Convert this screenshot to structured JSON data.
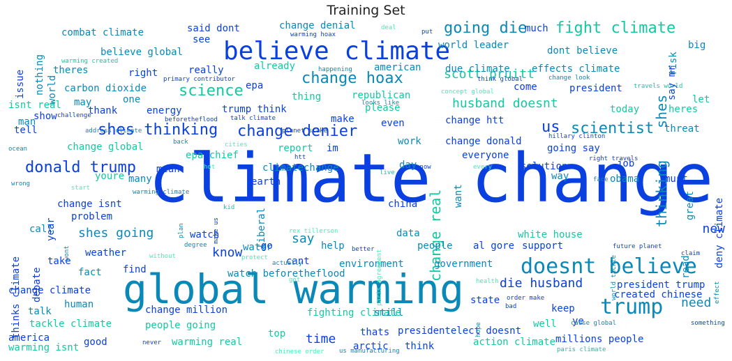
{
  "title": "Training Set",
  "palette": {
    "blue": "#0a3fe0",
    "teal": "#0a88b8",
    "green": "#12c9a0",
    "mint": "#3ef0b8"
  },
  "words": [
    {
      "t": "climate change",
      "s": "xl",
      "c": "blue"
    },
    {
      "t": "global warming",
      "s": "xl2",
      "c": "teal"
    },
    {
      "t": "believe climate",
      "s": "l",
      "c": "blue"
    },
    {
      "t": "doesnt believe",
      "s": "l2",
      "c": "teal"
    },
    {
      "t": "trump",
      "s": "l2",
      "c": "teal"
    },
    {
      "t": "fight climate",
      "s": "m",
      "c": "green"
    },
    {
      "t": "going die",
      "s": "m",
      "c": "teal"
    },
    {
      "t": "us",
      "s": "m",
      "c": "blue"
    },
    {
      "t": "scientist",
      "s": "m",
      "c": "teal"
    },
    {
      "t": "shes thinking",
      "s": "m",
      "c": "blue"
    },
    {
      "t": "change denier",
      "s": "m",
      "c": "blue"
    },
    {
      "t": "donald trump",
      "s": "m",
      "c": "blue"
    },
    {
      "t": "science",
      "s": "m",
      "c": "green"
    },
    {
      "t": "change hoax",
      "s": "m",
      "c": "teal"
    },
    {
      "t": "husband doesnt",
      "s": "ms",
      "c": "green"
    },
    {
      "t": "die husband",
      "s": "ms",
      "c": "blue"
    },
    {
      "t": "shes going",
      "s": "ms",
      "c": "teal"
    },
    {
      "t": "new",
      "s": "ms",
      "c": "blue"
    },
    {
      "t": "know",
      "s": "ms",
      "c": "blue"
    },
    {
      "t": "say",
      "s": "ms",
      "c": "teal"
    },
    {
      "t": "time",
      "s": "ms",
      "c": "blue"
    },
    {
      "t": "need",
      "s": "ms",
      "c": "teal"
    },
    {
      "t": "scott pruitt",
      "s": "ms",
      "c": "green"
    },
    {
      "t": "change real",
      "s": "msv",
      "c": "green"
    },
    {
      "t": "thinking",
      "s": "msv",
      "c": "teal"
    },
    {
      "t": "shes",
      "s": "msv",
      "c": "teal"
    },
    {
      "t": "change denial",
      "s": "s",
      "c": "teal"
    },
    {
      "t": "combat climate",
      "s": "s",
      "c": "teal"
    },
    {
      "t": "said dont",
      "s": "s",
      "c": "blue"
    },
    {
      "t": "much",
      "s": "s",
      "c": "blue"
    },
    {
      "t": "see",
      "s": "s",
      "c": "blue"
    },
    {
      "t": "world leader",
      "s": "s",
      "c": "teal"
    },
    {
      "t": "dont believe",
      "s": "s",
      "c": "teal"
    },
    {
      "t": "big",
      "s": "s",
      "c": "teal"
    },
    {
      "t": "believe global",
      "s": "s",
      "c": "teal"
    },
    {
      "t": "theres",
      "s": "s",
      "c": "teal"
    },
    {
      "t": "right",
      "s": "s",
      "c": "blue"
    },
    {
      "t": "really",
      "s": "s",
      "c": "blue"
    },
    {
      "t": "already",
      "s": "s",
      "c": "green"
    },
    {
      "t": "american",
      "s": "s",
      "c": "teal"
    },
    {
      "t": "due climate",
      "s": "s",
      "c": "teal"
    },
    {
      "t": "effects climate",
      "s": "s",
      "c": "teal"
    },
    {
      "t": "carbon dioxide",
      "s": "s",
      "c": "teal"
    },
    {
      "t": "epa",
      "s": "s",
      "c": "blue"
    },
    {
      "t": "come",
      "s": "s",
      "c": "blue"
    },
    {
      "t": "president",
      "s": "s",
      "c": "blue"
    },
    {
      "t": "one",
      "s": "s",
      "c": "teal"
    },
    {
      "t": "thing",
      "s": "s",
      "c": "green"
    },
    {
      "t": "republican",
      "s": "s",
      "c": "green"
    },
    {
      "t": "isnt real",
      "s": "s",
      "c": "green"
    },
    {
      "t": "thank",
      "s": "s",
      "c": "blue"
    },
    {
      "t": "energy",
      "s": "s",
      "c": "blue"
    },
    {
      "t": "trump think",
      "s": "s",
      "c": "blue"
    },
    {
      "t": "please",
      "s": "s",
      "c": "green"
    },
    {
      "t": "today",
      "s": "s",
      "c": "green"
    },
    {
      "t": "heres",
      "s": "s",
      "c": "green"
    },
    {
      "t": "let",
      "s": "s",
      "c": "green"
    },
    {
      "t": "show",
      "s": "s",
      "c": "blue"
    },
    {
      "t": "make",
      "s": "s",
      "c": "blue"
    },
    {
      "t": "change htt",
      "s": "s",
      "c": "blue"
    },
    {
      "t": "tell",
      "s": "s",
      "c": "blue"
    },
    {
      "t": "even",
      "s": "s",
      "c": "blue"
    },
    {
      "t": "threat",
      "s": "s",
      "c": "teal"
    },
    {
      "t": "change global",
      "s": "s",
      "c": "green"
    },
    {
      "t": "report",
      "s": "s",
      "c": "green"
    },
    {
      "t": "im",
      "s": "s",
      "c": "blue"
    },
    {
      "t": "work",
      "s": "s",
      "c": "teal"
    },
    {
      "t": "change donald",
      "s": "s",
      "c": "blue"
    },
    {
      "t": "epa chief",
      "s": "s",
      "c": "green"
    },
    {
      "t": "everyone",
      "s": "s",
      "c": "blue"
    },
    {
      "t": "going say",
      "s": "s",
      "c": "blue"
    },
    {
      "t": "mean",
      "s": "s",
      "c": "blue"
    },
    {
      "t": "day",
      "s": "s",
      "c": "teal"
    },
    {
      "t": "job",
      "s": "s",
      "c": "blue"
    },
    {
      "t": "climatechange",
      "s": "s",
      "c": "teal"
    },
    {
      "t": "solution",
      "s": "s",
      "c": "blue"
    },
    {
      "t": "youre",
      "s": "s",
      "c": "green"
    },
    {
      "t": "many",
      "s": "s",
      "c": "teal"
    },
    {
      "t": "earth",
      "s": "s",
      "c": "blue"
    },
    {
      "t": "way",
      "s": "s",
      "c": "teal"
    },
    {
      "t": "obama",
      "s": "s",
      "c": "teal"
    },
    {
      "t": "must",
      "s": "s",
      "c": "blue"
    },
    {
      "t": "change isnt",
      "s": "s",
      "c": "blue"
    },
    {
      "t": "china",
      "s": "s",
      "c": "blue"
    },
    {
      "t": "problem",
      "s": "s",
      "c": "blue"
    },
    {
      "t": "call",
      "s": "s",
      "c": "teal"
    },
    {
      "t": "data",
      "s": "s",
      "c": "teal"
    },
    {
      "t": "white house",
      "s": "s",
      "c": "green"
    },
    {
      "t": "watch",
      "s": "s",
      "c": "blue"
    },
    {
      "t": "water",
      "s": "s",
      "c": "teal"
    },
    {
      "t": "help",
      "s": "s",
      "c": "teal"
    },
    {
      "t": "people",
      "s": "s",
      "c": "teal"
    },
    {
      "t": "al gore",
      "s": "s",
      "c": "blue"
    },
    {
      "t": "support",
      "s": "s",
      "c": "blue"
    },
    {
      "t": "weather",
      "s": "s",
      "c": "blue"
    },
    {
      "t": "go",
      "s": "s",
      "c": "blue"
    },
    {
      "t": "take",
      "s": "s",
      "c": "blue"
    },
    {
      "t": "cant",
      "s": "s",
      "c": "blue"
    },
    {
      "t": "environment",
      "s": "s",
      "c": "teal"
    },
    {
      "t": "government",
      "s": "s",
      "c": "teal"
    },
    {
      "t": "fact",
      "s": "s",
      "c": "teal"
    },
    {
      "t": "find",
      "s": "s",
      "c": "blue"
    },
    {
      "t": "watch beforetheflood",
      "s": "s",
      "c": "teal"
    },
    {
      "t": "president trump",
      "s": "s",
      "c": "blue"
    },
    {
      "t": "change climate",
      "s": "s",
      "c": "blue"
    },
    {
      "t": "human",
      "s": "s",
      "c": "teal"
    },
    {
      "t": "state",
      "s": "s",
      "c": "blue"
    },
    {
      "t": "created chinese",
      "s": "s",
      "c": "blue"
    },
    {
      "t": "talk",
      "s": "s",
      "c": "teal"
    },
    {
      "t": "change million",
      "s": "s",
      "c": "blue"
    },
    {
      "t": "fighting climate",
      "s": "s",
      "c": "green"
    },
    {
      "t": "still",
      "s": "s",
      "c": "teal"
    },
    {
      "t": "keep",
      "s": "s",
      "c": "blue"
    },
    {
      "t": "well",
      "s": "s",
      "c": "green"
    },
    {
      "t": "ye",
      "s": "s",
      "c": "blue"
    },
    {
      "t": "tackle climate",
      "s": "s",
      "c": "green"
    },
    {
      "t": "people going",
      "s": "s",
      "c": "green"
    },
    {
      "t": "thats",
      "s": "s",
      "c": "blue"
    },
    {
      "t": "presidentelect doesnt",
      "s": "s",
      "c": "blue"
    },
    {
      "t": "america",
      "s": "s",
      "c": "blue"
    },
    {
      "t": "top",
      "s": "s",
      "c": "green"
    },
    {
      "t": "good",
      "s": "s",
      "c": "blue"
    },
    {
      "t": "warming real",
      "s": "s",
      "c": "green"
    },
    {
      "t": "arctic",
      "s": "s",
      "c": "blue"
    },
    {
      "t": "think",
      "s": "s",
      "c": "blue"
    },
    {
      "t": "action climate",
      "s": "s",
      "c": "green"
    },
    {
      "t": "millions people",
      "s": "s",
      "c": "blue"
    },
    {
      "t": "warming isnt",
      "s": "s",
      "c": "green"
    },
    {
      "t": "nothing",
      "s": "sv",
      "c": "teal"
    },
    {
      "t": "issue",
      "s": "sv",
      "c": "blue"
    },
    {
      "t": "world",
      "s": "sv",
      "c": "teal"
    },
    {
      "t": "may",
      "s": "s",
      "c": "teal"
    },
    {
      "t": "man",
      "s": "s",
      "c": "teal"
    },
    {
      "t": "risk",
      "s": "sv",
      "c": "teal"
    },
    {
      "t": "say mr",
      "s": "sv",
      "c": "blue"
    },
    {
      "t": "want",
      "s": "sv",
      "c": "teal"
    },
    {
      "t": "liberal",
      "s": "sv",
      "c": "teal"
    },
    {
      "t": "year",
      "s": "sv",
      "c": "blue"
    },
    {
      "t": "thinks climate",
      "s": "sv",
      "c": "blue"
    },
    {
      "t": "debate",
      "s": "sv",
      "c": "blue"
    },
    {
      "t": "great",
      "s": "sv",
      "c": "teal"
    },
    {
      "t": "deny climate",
      "s": "sv",
      "c": "blue"
    },
    {
      "t": "read",
      "s": "sv",
      "c": "teal"
    },
    {
      "t": "claim",
      "s": "xs",
      "c": "blue"
    },
    {
      "t": "warming hoax",
      "s": "xs",
      "c": "blue"
    },
    {
      "t": "deal",
      "s": "xs",
      "c": "mint"
    },
    {
      "t": "put",
      "s": "xs",
      "c": "blue"
    },
    {
      "t": "warming created",
      "s": "xs",
      "c": "green"
    },
    {
      "t": "happening",
      "s": "xs",
      "c": "teal"
    },
    {
      "t": "primary contributor",
      "s": "xs",
      "c": "blue"
    },
    {
      "t": "think global",
      "s": "xs",
      "c": "blue"
    },
    {
      "t": "change look",
      "s": "xs",
      "c": "teal"
    },
    {
      "t": "travels world",
      "s": "xs",
      "c": "green"
    },
    {
      "t": "concept global",
      "s": "xs",
      "c": "mint"
    },
    {
      "t": "looks like",
      "s": "xs",
      "c": "teal"
    },
    {
      "t": "challenge",
      "s": "xs",
      "c": "blue"
    },
    {
      "t": "beforetheflood",
      "s": "xs",
      "c": "blue"
    },
    {
      "t": "talk climate",
      "s": "xs",
      "c": "blue"
    },
    {
      "t": "planet stake",
      "s": "xs",
      "c": "blue"
    },
    {
      "t": "address climate",
      "s": "xs",
      "c": "teal"
    },
    {
      "t": "ocean",
      "s": "xs",
      "c": "teal"
    },
    {
      "t": "back",
      "s": "xs",
      "c": "teal"
    },
    {
      "t": "cities",
      "s": "xs",
      "c": "mint"
    },
    {
      "t": "htt",
      "s": "xs",
      "c": "blue"
    },
    {
      "t": "hillary clinton",
      "s": "xs",
      "c": "blue"
    },
    {
      "t": "right travels",
      "s": "xs",
      "c": "blue"
    },
    {
      "t": "wrong",
      "s": "xs",
      "c": "teal"
    },
    {
      "t": "hot",
      "s": "xs",
      "c": "mint"
    },
    {
      "t": "snow",
      "s": "xs",
      "c": "blue"
    },
    {
      "t": "live",
      "s": "xs",
      "c": "green"
    },
    {
      "t": "every",
      "s": "xs",
      "c": "mint"
    },
    {
      "t": "face",
      "s": "xs",
      "c": "teal"
    },
    {
      "t": "start",
      "s": "xs",
      "c": "mint"
    },
    {
      "t": "warming climate",
      "s": "xs",
      "c": "teal"
    },
    {
      "t": "kid",
      "s": "xs",
      "c": "green"
    },
    {
      "t": "rex tillerson",
      "s": "xs",
      "c": "mint"
    },
    {
      "t": "degree",
      "s": "xs",
      "c": "teal"
    },
    {
      "t": "without",
      "s": "xs",
      "c": "mint"
    },
    {
      "t": "protect",
      "s": "xs",
      "c": "mint"
    },
    {
      "t": "better",
      "s": "xs",
      "c": "blue"
    },
    {
      "t": "future planet",
      "s": "xs",
      "c": "blue"
    },
    {
      "t": "actually",
      "s": "xs",
      "c": "teal"
    },
    {
      "t": "got",
      "s": "xs",
      "c": "mint"
    },
    {
      "t": "health",
      "s": "xs",
      "c": "mint"
    },
    {
      "t": "order make",
      "s": "xs",
      "c": "blue"
    },
    {
      "t": "bad",
      "s": "xs",
      "c": "blue"
    },
    {
      "t": "cause global",
      "s": "xs",
      "c": "teal"
    },
    {
      "t": "something",
      "s": "xs",
      "c": "blue"
    },
    {
      "t": "never",
      "s": "xs",
      "c": "blue"
    },
    {
      "t": "chinese order",
      "s": "xs",
      "c": "mint"
    },
    {
      "t": "us manufacturing",
      "s": "xs",
      "c": "teal"
    },
    {
      "t": "paris climate",
      "s": "xs",
      "c": "green"
    },
    {
      "t": "plan",
      "s": "xsv",
      "c": "teal"
    },
    {
      "t": "make us",
      "s": "xsv",
      "c": "blue"
    },
    {
      "t": "wont",
      "s": "xsv",
      "c": "teal"
    },
    {
      "t": "paris agreement",
      "s": "xsv",
      "c": "mint"
    },
    {
      "t": "world tackle",
      "s": "xsv",
      "c": "teal"
    },
    {
      "t": "effect",
      "s": "xsv",
      "c": "teal"
    },
    {
      "t": "hope",
      "s": "xsv",
      "c": "teal"
    }
  ]
}
